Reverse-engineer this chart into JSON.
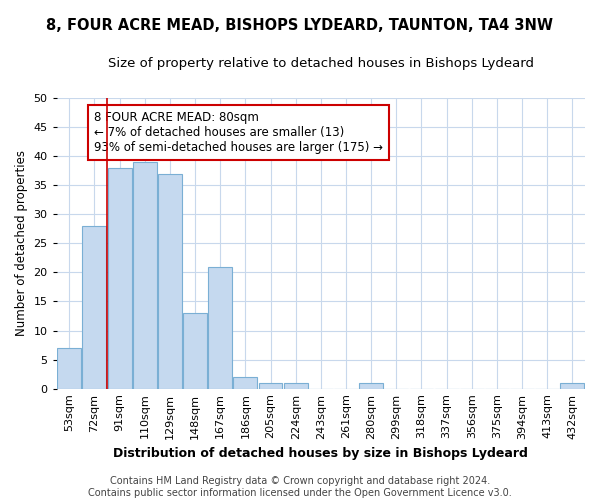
{
  "title1": "8, FOUR ACRE MEAD, BISHOPS LYDEARD, TAUNTON, TA4 3NW",
  "title2": "Size of property relative to detached houses in Bishops Lydeard",
  "xlabel": "Distribution of detached houses by size in Bishops Lydeard",
  "ylabel": "Number of detached properties",
  "categories": [
    "53sqm",
    "72sqm",
    "91sqm",
    "110sqm",
    "129sqm",
    "148sqm",
    "167sqm",
    "186sqm",
    "205sqm",
    "224sqm",
    "243sqm",
    "261sqm",
    "280sqm",
    "299sqm",
    "318sqm",
    "337sqm",
    "356sqm",
    "375sqm",
    "394sqm",
    "413sqm",
    "432sqm"
  ],
  "values": [
    7,
    28,
    38,
    39,
    37,
    13,
    21,
    2,
    1,
    1,
    0,
    0,
    1,
    0,
    0,
    0,
    0,
    0,
    0,
    0,
    1
  ],
  "bar_color": "#c5d9ef",
  "bar_edge_color": "#7aafd4",
  "annotation_box_text": "8 FOUR ACRE MEAD: 80sqm\n← 7% of detached houses are smaller (13)\n93% of semi-detached houses are larger (175) →",
  "annotation_box_color": "#ffffff",
  "annotation_box_edge_color": "#cc0000",
  "vline_color": "#cc0000",
  "vline_x": 1.5,
  "ylim": [
    0,
    50
  ],
  "yticks": [
    0,
    5,
    10,
    15,
    20,
    25,
    30,
    35,
    40,
    45,
    50
  ],
  "grid_color": "#c8d8ec",
  "background_color": "#ffffff",
  "footer1": "Contains HM Land Registry data © Crown copyright and database right 2024.",
  "footer2": "Contains public sector information licensed under the Open Government Licence v3.0.",
  "title1_fontsize": 10.5,
  "title2_fontsize": 9.5,
  "xlabel_fontsize": 9,
  "ylabel_fontsize": 8.5,
  "tick_fontsize": 8,
  "annot_fontsize": 8.5,
  "footer_fontsize": 7
}
